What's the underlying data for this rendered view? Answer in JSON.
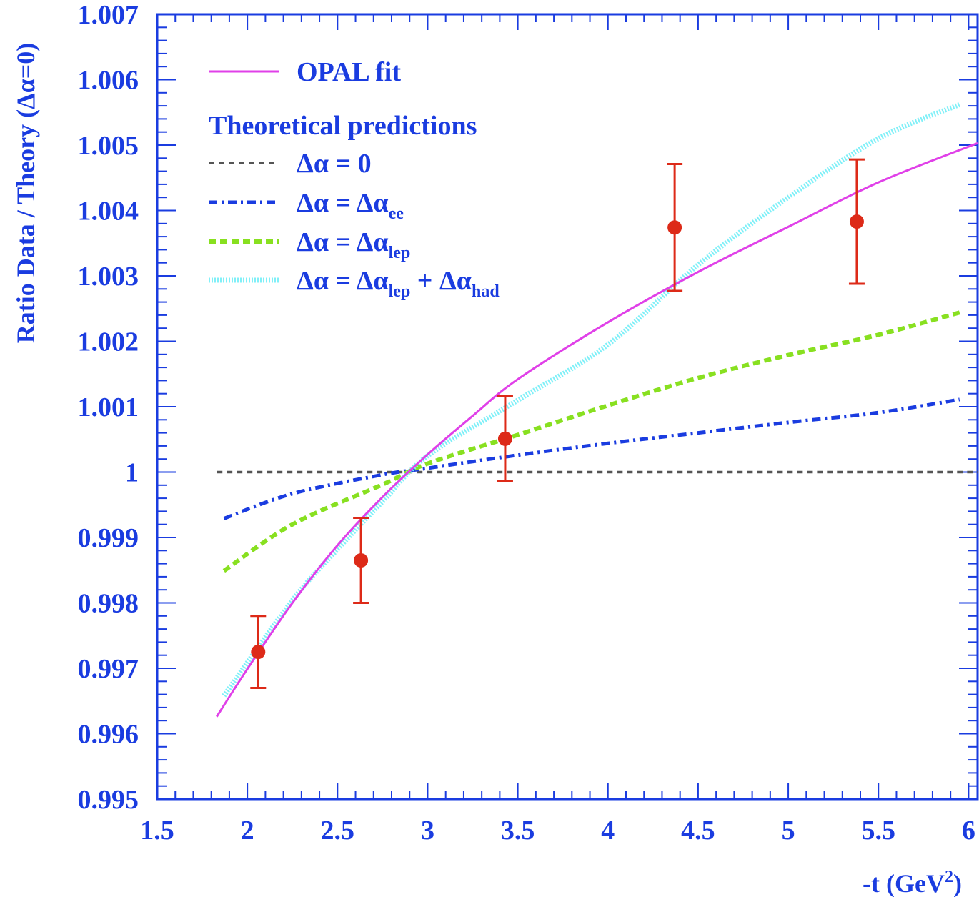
{
  "chart_data": {
    "type": "line",
    "title": "",
    "xlabel": "-t (GeV",
    "xlabel_sup": "2",
    "xlabel_tail": ")",
    "ylabel": "Ratio  Data / Theory (Δα=0)",
    "xlim": [
      1.5,
      6.05
    ],
    "ylim": [
      0.995,
      1.007
    ],
    "x_ticks": [
      {
        "v": 1.5,
        "label": "1.5"
      },
      {
        "v": 2,
        "label": "2"
      },
      {
        "v": 2.5,
        "label": "2.5"
      },
      {
        "v": 3,
        "label": "3"
      },
      {
        "v": 3.5,
        "label": "3.5"
      },
      {
        "v": 4,
        "label": "4"
      },
      {
        "v": 4.5,
        "label": "4.5"
      },
      {
        "v": 5,
        "label": "5"
      },
      {
        "v": 5.5,
        "label": "5.5"
      },
      {
        "v": 6,
        "label": "6"
      }
    ],
    "y_ticks": [
      {
        "v": 0.995,
        "label": "0.995"
      },
      {
        "v": 0.996,
        "label": "0.996"
      },
      {
        "v": 0.997,
        "label": "0.997"
      },
      {
        "v": 0.998,
        "label": "0.998"
      },
      {
        "v": 0.999,
        "label": "0.999"
      },
      {
        "v": 1.0,
        "label": "1"
      },
      {
        "v": 1.001,
        "label": "1.001"
      },
      {
        "v": 1.002,
        "label": "1.002"
      },
      {
        "v": 1.003,
        "label": "1.003"
      },
      {
        "v": 1.004,
        "label": "1.004"
      },
      {
        "v": 1.005,
        "label": "1.005"
      },
      {
        "v": 1.006,
        "label": "1.006"
      },
      {
        "v": 1.007,
        "label": "1.007"
      }
    ],
    "legend": {
      "placement": "top-left",
      "header": "Theoretical predictions",
      "entries": [
        {
          "key": "fit",
          "main": "OPAL fit",
          "color": "#e040e8",
          "style": "solid"
        },
        {
          "key": "zero",
          "main": "Δα = 0",
          "color": "#555555",
          "style": "dashed"
        },
        {
          "key": "ee",
          "main": "Δα = Δα",
          "sub": "ee",
          "color": "#1a3ce0",
          "style": "dashdot"
        },
        {
          "key": "lep",
          "main": "Δα = Δα",
          "sub": "lep",
          "color": "#88e020",
          "style": "dashed-thick"
        },
        {
          "key": "had",
          "main": "Δα = Δα",
          "sub": "lep",
          "main2": " + Δα",
          "sub2": "had",
          "color": "#80f0f8",
          "style": "dotted"
        }
      ]
    },
    "series": [
      {
        "key": "fit",
        "color": "#e040e8",
        "points": [
          [
            1.83,
            0.99626
          ],
          [
            2.0,
            0.99699
          ],
          [
            2.25,
            0.998
          ],
          [
            2.5,
            0.99888
          ],
          [
            2.75,
            0.99962
          ],
          [
            3.0,
            1.00027
          ],
          [
            3.25,
            1.00086
          ],
          [
            3.5,
            1.00142
          ],
          [
            4.0,
            1.00229
          ],
          [
            4.5,
            1.00306
          ],
          [
            5.0,
            1.00375
          ],
          [
            5.5,
            1.00443
          ],
          [
            6.05,
            1.00503
          ]
        ]
      },
      {
        "key": "zero",
        "color": "#555555",
        "points": [
          [
            1.83,
            1.0
          ],
          [
            6.05,
            1.0
          ]
        ]
      },
      {
        "key": "ee",
        "color": "#1a3ce0",
        "points": [
          [
            1.87,
            0.99929
          ],
          [
            2.25,
            0.99967
          ],
          [
            2.75,
            0.99996
          ],
          [
            3.0,
            1.00006
          ],
          [
            3.5,
            1.00026
          ],
          [
            4.0,
            1.00044
          ],
          [
            4.5,
            1.0006
          ],
          [
            5.0,
            1.00076
          ],
          [
            5.5,
            1.00091
          ],
          [
            5.95,
            1.00111
          ]
        ]
      },
      {
        "key": "lep",
        "color": "#88e020",
        "points": [
          [
            1.87,
            0.99849
          ],
          [
            2.25,
            0.9992
          ],
          [
            2.75,
            0.99981
          ],
          [
            3.0,
            1.00013
          ],
          [
            3.5,
            1.00057
          ],
          [
            4.0,
            1.00102
          ],
          [
            4.5,
            1.00144
          ],
          [
            5.0,
            1.00179
          ],
          [
            5.5,
            1.0021
          ],
          [
            5.95,
            1.00244
          ]
        ]
      },
      {
        "key": "had",
        "color": "#80f0f8",
        "points": [
          [
            1.87,
            0.99658
          ],
          [
            2.25,
            0.99804
          ],
          [
            2.5,
            0.99882
          ],
          [
            2.75,
            0.99955
          ],
          [
            3.0,
            1.00025
          ],
          [
            3.5,
            1.0011
          ],
          [
            4.0,
            1.00195
          ],
          [
            4.5,
            1.00317
          ],
          [
            5.0,
            1.0042
          ],
          [
            5.5,
            1.0051
          ],
          [
            5.95,
            1.00562
          ]
        ]
      }
    ],
    "points": [
      {
        "x": 2.06,
        "y": 0.99725,
        "err_low": 0.00055,
        "err_high": 0.00055,
        "color": "#dd2a18"
      },
      {
        "x": 2.63,
        "y": 0.99865,
        "err_low": 0.00065,
        "err_high": 0.00065,
        "color": "#dd2a18"
      },
      {
        "x": 3.43,
        "y": 1.00051,
        "err_low": 0.00065,
        "err_high": 0.00065,
        "color": "#dd2a18"
      },
      {
        "x": 4.37,
        "y": 1.00374,
        "err_low": 0.00097,
        "err_high": 0.00097,
        "color": "#dd2a18"
      },
      {
        "x": 5.38,
        "y": 1.00383,
        "err_low": 0.00095,
        "err_high": 0.00095,
        "color": "#dd2a18"
      }
    ],
    "axis_color": "#1a3ce0"
  }
}
